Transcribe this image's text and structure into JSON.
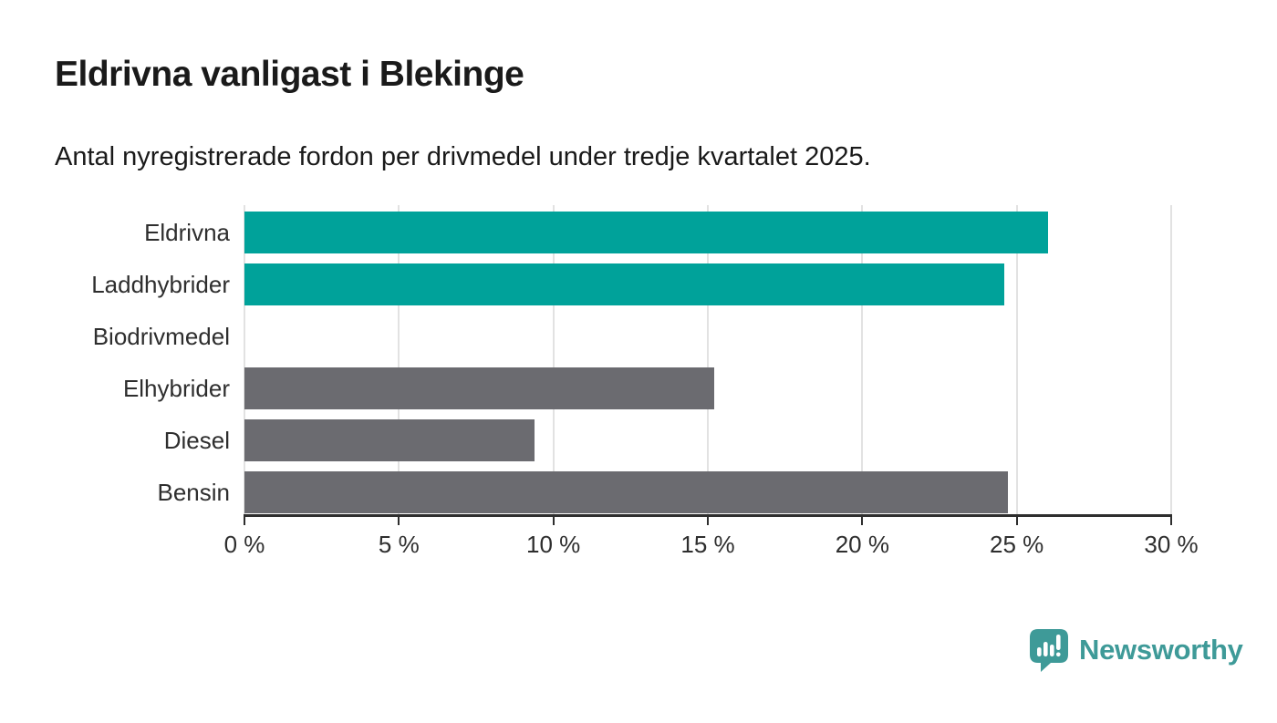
{
  "chart_data": {
    "type": "bar",
    "orientation": "horizontal",
    "title": "Eldrivna vanligast i Blekinge",
    "subtitle": "Antal nyregistrerade fordon per drivmedel under tredje kvartalet 2025.",
    "categories": [
      "Eldrivna",
      "Laddhybrider",
      "Biodrivmedel",
      "Elhybrider",
      "Diesel",
      "Bensin"
    ],
    "values": [
      26.0,
      24.6,
      0,
      15.2,
      9.4,
      24.7
    ],
    "unit": "%",
    "bar_colors": [
      "#00a29a",
      "#00a29a",
      "#6b6b70",
      "#6b6b70",
      "#6b6b70",
      "#6b6b70"
    ],
    "xlim": [
      0,
      30
    ],
    "x_ticks": [
      0,
      5,
      10,
      15,
      20,
      25,
      30
    ],
    "x_tick_labels": [
      "0 %",
      "5 %",
      "10 %",
      "15 %",
      "20 %",
      "25 %",
      "30 %"
    ],
    "grid": true,
    "legend": "none",
    "xlabel": "",
    "ylabel": ""
  },
  "footer": {
    "brand": "Newsworthy"
  },
  "colors": {
    "accent_teal": "#00a29a",
    "muted_gray": "#6b6b70",
    "axis": "#2e2e2e",
    "gridline": "#e2e2e2",
    "text_dark": "#1a1a1a",
    "logo_teal": "#3e9a98"
  }
}
